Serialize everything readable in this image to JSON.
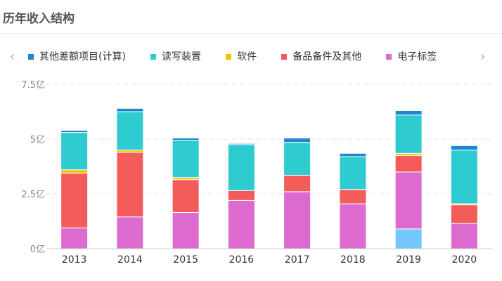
{
  "title": "历年收入结构",
  "chart_data": {
    "type": "bar",
    "stacked": true,
    "categories": [
      "2013",
      "2014",
      "2015",
      "2016",
      "2017",
      "2018",
      "2019",
      "2020"
    ],
    "y_ticks": [
      "0亿",
      "2.5亿",
      "5亿",
      "7.5亿"
    ],
    "ylim": [
      0,
      7.5
    ],
    "grid": true,
    "legend_position": "top",
    "series": [
      {
        "name": "其他差额项目(计算)",
        "color": "#1f86d0",
        "values": [
          0.1,
          0.15,
          0.1,
          0.05,
          0.2,
          0.15,
          0.2,
          0.2
        ]
      },
      {
        "name": "读写装置",
        "color": "#2ecbd0",
        "values": [
          1.7,
          1.75,
          1.7,
          2.1,
          1.5,
          1.5,
          1.75,
          2.45
        ]
      },
      {
        "name": "软件",
        "color": "#f2c200",
        "values": [
          0.15,
          0.1,
          0.1,
          0,
          0,
          0,
          0.1,
          0.05
        ]
      },
      {
        "name": "备品备件及其他",
        "color": "#f45b5b",
        "values": [
          2.5,
          2.95,
          1.5,
          0.45,
          0.75,
          0.65,
          0.75,
          0.85
        ]
      },
      {
        "name": "电子标签",
        "color": "#dd6bcf",
        "values": [
          0.95,
          1.45,
          1.65,
          2.2,
          2.6,
          2.05,
          2.6,
          1.15
        ]
      },
      {
        "name": "",
        "color": "#74c6fb",
        "values": [
          0,
          0,
          0,
          0,
          0,
          0,
          0.9,
          0
        ]
      }
    ]
  },
  "legend": {
    "items": [
      {
        "label": "其他差额项目(计算)",
        "color": "#1f86d0"
      },
      {
        "label": "读写装置",
        "color": "#2ecbd0"
      },
      {
        "label": "软件",
        "color": "#f2c200"
      },
      {
        "label": "备品备件及其他",
        "color": "#f45b5b"
      },
      {
        "label": "电子标签",
        "color": "#dd6bcf"
      }
    ],
    "prev_icon": "‹",
    "next_icon": "›"
  }
}
